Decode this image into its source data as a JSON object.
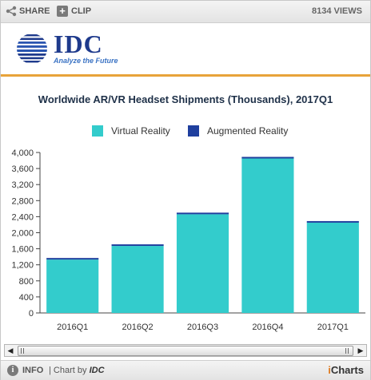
{
  "toolbar": {
    "share_label": "SHARE",
    "clip_label": "CLIP",
    "views": "8134 VIEWS"
  },
  "logo": {
    "name": "IDC",
    "tagline": "Analyze the Future"
  },
  "footer": {
    "info_label": "INFO",
    "chart_by_prefix": "| Chart by",
    "chart_by_brand": "IDC",
    "brand_i": "i",
    "brand_rest": "Charts"
  },
  "colors": {
    "virtual_reality": "#33cccc",
    "augmented_reality": "#1f3f9e",
    "accent": "#e8a33a"
  },
  "chart_data": {
    "type": "bar",
    "stacked": true,
    "title": "Worldwide AR/VR Headset Shipments (Thousands), 2017Q1",
    "categories": [
      "2016Q1",
      "2016Q2",
      "2016Q3",
      "2016Q4",
      "2017Q1"
    ],
    "series": [
      {
        "name": "Virtual Reality",
        "values": [
          1330,
          1670,
          2460,
          3850,
          2250
        ]
      },
      {
        "name": "Augmented Reality",
        "values": [
          20,
          40,
          40,
          40,
          30
        ]
      }
    ],
    "ylim": [
      0,
      4000
    ],
    "yticks": [
      "0",
      "400",
      "800",
      "1,200",
      "1,600",
      "2,000",
      "2,400",
      "2,800",
      "3,200",
      "3,600",
      "4,000"
    ],
    "legend_position": "top",
    "grid": false
  }
}
